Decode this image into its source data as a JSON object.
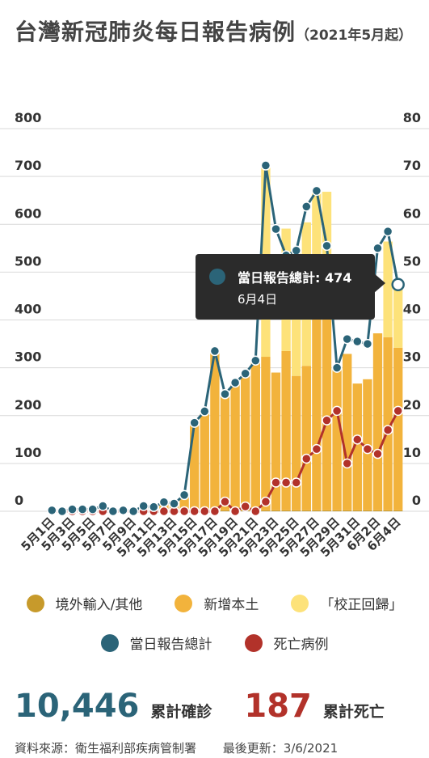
{
  "title": {
    "main": "台灣新冠肺炎每日報告病例",
    "sub": "（2021年5月起）"
  },
  "colors": {
    "imported": "#c79a2b",
    "local": "#f2b33c",
    "backlog": "#fde27a",
    "total": "#2b6478",
    "deaths": "#b2322a",
    "grid": "#d9d9d9",
    "tooltip_bg": "#2b2b2b"
  },
  "chart_data": {
    "type": "bar",
    "stacked": true,
    "categories": [
      "5月1日",
      "5月2日",
      "5月3日",
      "5月4日",
      "5月5日",
      "5月6日",
      "5月7日",
      "5月8日",
      "5月9日",
      "5月10日",
      "5月11日",
      "5月12日",
      "5月13日",
      "5月14日",
      "5月15日",
      "5月16日",
      "5月17日",
      "5月18日",
      "5月19日",
      "5月20日",
      "5月21日",
      "5月22日",
      "5月23日",
      "5月24日",
      "5月25日",
      "5月26日",
      "5月27日",
      "5月28日",
      "5月29日",
      "5月30日",
      "5月31日",
      "6月1日",
      "6月2日",
      "6月3日",
      "6月4日"
    ],
    "x_tick_labels": [
      "5月1日",
      "5月3日",
      "5月5日",
      "5月7日",
      "5月9日",
      "5月11日",
      "5月13日",
      "5月15日",
      "5月17日",
      "5月19日",
      "5月21日",
      "5月23日",
      "5月25日",
      "5月27日",
      "5月29日",
      "5月31日",
      "6月2日",
      "6月4日"
    ],
    "left_axis": {
      "ylim": [
        0,
        800
      ],
      "ticks": [
        0,
        100,
        200,
        300,
        400,
        500,
        600,
        700,
        800
      ]
    },
    "right_axis": {
      "ylim": [
        0,
        80
      ],
      "ticks": [
        0,
        10,
        20,
        30,
        40,
        50,
        60,
        70,
        80
      ]
    },
    "grid": true,
    "series": [
      {
        "name": "境外輸入/其他",
        "kind": "bar",
        "axis": "left",
        "values": [
          2,
          0,
          4,
          4,
          4,
          10,
          0,
          2,
          0,
          4,
          2,
          3,
          3,
          4,
          2,
          3,
          2,
          2,
          2,
          2,
          2,
          2,
          2,
          2,
          2,
          2,
          2,
          2,
          2,
          2,
          2,
          2,
          2,
          2,
          2
        ]
      },
      {
        "name": "新增本土",
        "kind": "bar",
        "axis": "left",
        "values": [
          0,
          0,
          0,
          0,
          0,
          1,
          0,
          0,
          0,
          7,
          7,
          16,
          13,
          29,
          180,
          206,
          333,
          240,
          267,
          286,
          312,
          321,
          288,
          333,
          281,
          302,
          400,
          400,
          296,
          327,
          265,
          274,
          370,
          362,
          340
        ]
      },
      {
        "name": "「校正回歸」",
        "kind": "bar",
        "axis": "left",
        "values": [
          0,
          0,
          0,
          0,
          0,
          0,
          0,
          0,
          0,
          0,
          0,
          0,
          0,
          0,
          0,
          0,
          0,
          0,
          0,
          0,
          0,
          400,
          0,
          256,
          260,
          300,
          266,
          266,
          0,
          0,
          0,
          0,
          0,
          200,
          132
        ]
      },
      {
        "name": "當日報告總計",
        "kind": "line",
        "axis": "left",
        "values": [
          2,
          0,
          4,
          4,
          4,
          11,
          0,
          2,
          0,
          11,
          9,
          19,
          16,
          34,
          185,
          209,
          335,
          245,
          269,
          288,
          315,
          723,
          590,
          535,
          545,
          637,
          670,
          555,
          300,
          360,
          355,
          350,
          550,
          585,
          474
        ]
      },
      {
        "name": "死亡病例",
        "kind": "line",
        "axis": "right",
        "values": [
          0,
          0,
          0,
          0,
          0,
          0,
          0,
          0,
          0,
          0,
          0,
          0,
          0,
          0,
          0,
          0,
          0,
          2,
          0,
          1,
          0,
          2,
          6,
          6,
          6,
          11,
          13,
          19,
          21,
          10,
          15,
          13,
          12,
          17,
          21
        ]
      }
    ],
    "highlight": {
      "index": 34,
      "series": "當日報告總計"
    }
  },
  "tooltip": {
    "label": "當日報告總計: 474",
    "date": "6月4日"
  },
  "legend": {
    "imported": "境外輸入/其他",
    "local": "新增本土",
    "backlog": "「校正回歸」",
    "total": "當日報告總計",
    "deaths": "死亡病例"
  },
  "stats": {
    "cases_value": "10,446",
    "cases_label": "累計確診",
    "deaths_value": "187",
    "deaths_label": "累計死亡"
  },
  "footer": {
    "source": "資料來源：衛生福利部疾病管制署",
    "updated": "最後更新：3/6/2021"
  }
}
